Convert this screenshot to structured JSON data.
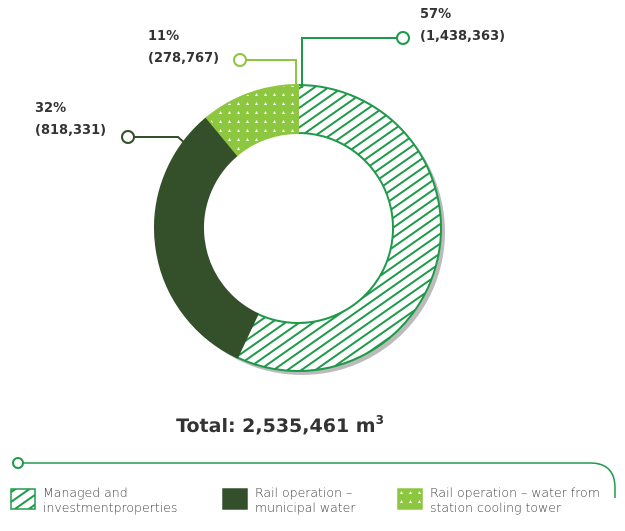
{
  "chart_data": {
    "type": "donut",
    "title": "Total: 2,535,461 m",
    "title_superscript": "3",
    "categories": [
      "Managed and investmentproperties",
      "Rail operation – municipal water",
      "Rail operation – water from station cooling tower"
    ],
    "values": [
      57,
      32,
      11
    ],
    "value_labels": [
      "57%",
      "32%",
      "11%"
    ],
    "amounts": [
      {
        "value": 1438363,
        "label": "(1,438,363)"
      },
      {
        "value": 818331,
        "label": "(818,331)"
      },
      {
        "value": 278767,
        "label": "(278,767)"
      }
    ],
    "colors": [
      "#1f9a4a",
      "#33502b",
      "#8dc63f"
    ],
    "patterns": [
      "hatch",
      "solid",
      "dots"
    ]
  }
}
